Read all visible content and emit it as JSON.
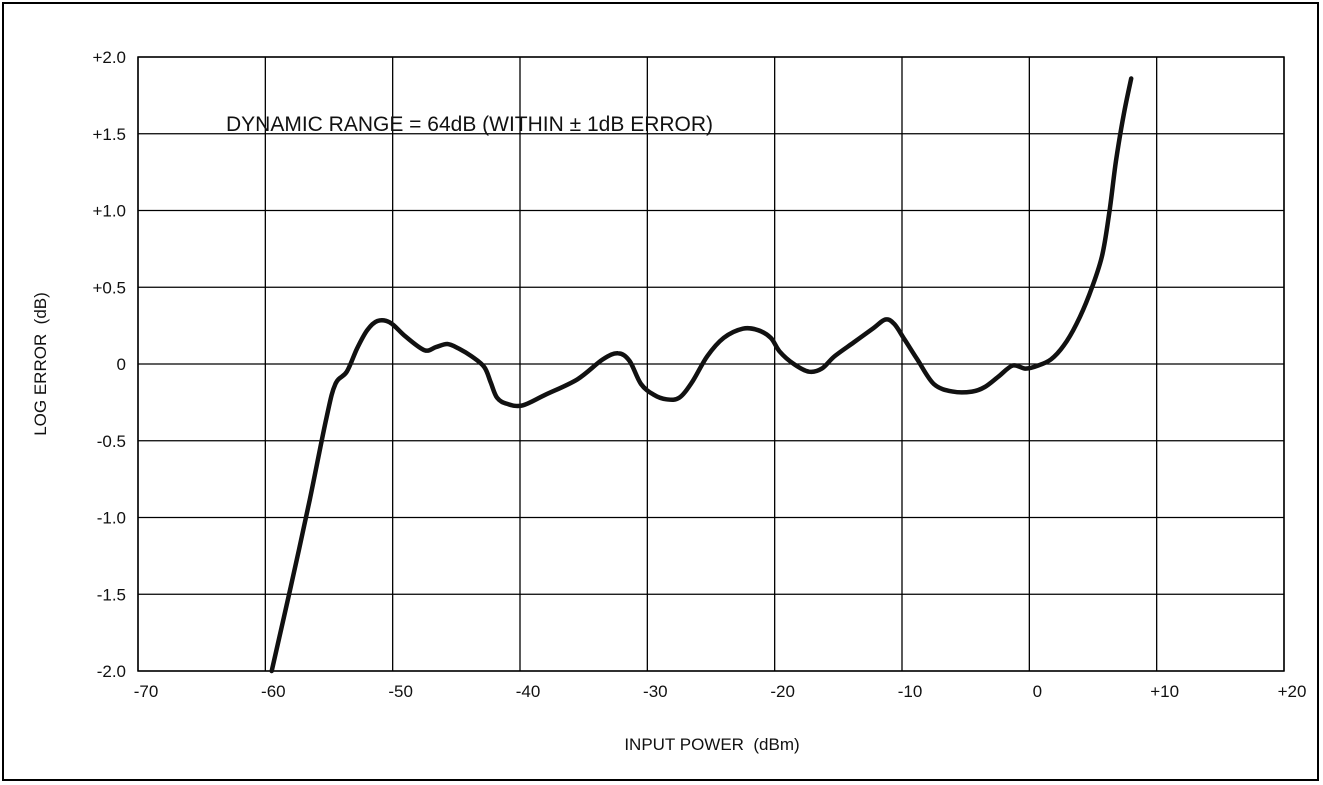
{
  "chart_data": {
    "type": "line",
    "title": "",
    "xlabel": "INPUT POWER  (dBm)",
    "ylabel": "LOG ERROR  (dB)",
    "xlim": [
      -70,
      20
    ],
    "ylim": [
      -2.0,
      2.0
    ],
    "grid": true,
    "x_ticks": [
      -70,
      -60,
      -50,
      -40,
      -30,
      -20,
      -10,
      0,
      10,
      20
    ],
    "x_tick_labels": [
      "-70",
      "-60",
      "-50",
      "-40",
      "-30",
      "-20",
      "-10",
      "0",
      "+10",
      "+20"
    ],
    "y_ticks": [
      2.0,
      1.5,
      1.0,
      0.5,
      0,
      -0.5,
      -1.0,
      -1.5,
      -2.0
    ],
    "y_tick_labels": [
      "+2.0",
      "+1.5",
      "+1.0",
      "+0.5",
      "0",
      "-0.5",
      "-1.0",
      "-1.5",
      "-2.0"
    ],
    "annotation": "DYNAMIC RANGE = 64dB (WITHIN ± 1dB ERROR)",
    "line_color": "#111111",
    "series": [
      {
        "x": [
          -59.5,
          -58,
          -56.5,
          -55.2,
          -54.5,
          -53.6,
          -52.8,
          -52,
          -51.2,
          -50.2,
          -49,
          -47.5,
          -46.6,
          -45.7,
          -44.8,
          -43.8,
          -42.8,
          -42.3,
          -41.8,
          -41,
          -39.8,
          -38,
          -35.5,
          -33.5,
          -32.3,
          -31.4,
          -30.5,
          -29.5,
          -28.5,
          -27.5,
          -26.5,
          -25.3,
          -24,
          -22.5,
          -21.3,
          -20.3,
          -19.6,
          -18.5,
          -17.3,
          -16.3,
          -15.3,
          -13.8,
          -12.3,
          -11.3,
          -10.6,
          -9.8,
          -8.8,
          -7.5,
          -6,
          -4.5,
          -3.5,
          -2.4,
          -1.3,
          -0.3,
          0.7,
          1.7,
          2.7,
          3.7,
          4.7,
          5.7,
          6.3,
          6.8,
          7.4,
          8.0
        ],
        "y": [
          -2.0,
          -1.45,
          -0.88,
          -0.35,
          -0.13,
          -0.05,
          0.1,
          0.22,
          0.28,
          0.27,
          0.18,
          0.09,
          0.11,
          0.13,
          0.1,
          0.05,
          -0.02,
          -0.12,
          -0.22,
          -0.26,
          -0.27,
          -0.2,
          -0.1,
          0.03,
          0.07,
          0.02,
          -0.13,
          -0.2,
          -0.23,
          -0.22,
          -0.12,
          0.05,
          0.17,
          0.23,
          0.22,
          0.17,
          0.08,
          0.0,
          -0.05,
          -0.03,
          0.05,
          0.14,
          0.23,
          0.29,
          0.26,
          0.16,
          0.03,
          -0.13,
          -0.18,
          -0.18,
          -0.15,
          -0.08,
          -0.01,
          -0.03,
          -0.01,
          0.03,
          0.12,
          0.26,
          0.45,
          0.7,
          1.0,
          1.32,
          1.62,
          1.86
        ]
      }
    ]
  }
}
